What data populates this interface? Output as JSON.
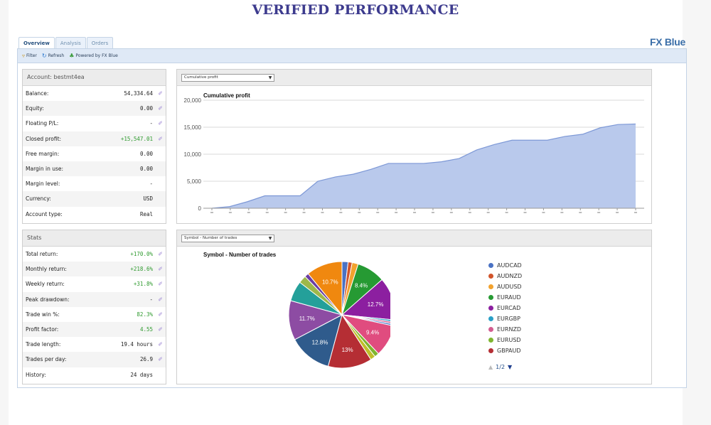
{
  "page": {
    "title": "VERIFIED PERFORMANCE"
  },
  "tabs": [
    {
      "label": "Overview",
      "active": true
    },
    {
      "label": "Analysis",
      "active": false
    },
    {
      "label": "Orders",
      "active": false
    }
  ],
  "brand": "FX Blue",
  "toolbar": {
    "filter": "Filter",
    "refresh": "Refresh",
    "powered": "Powered by FX Blue"
  },
  "icons": {
    "filter": "filter-icon",
    "refresh": "refresh-icon",
    "powered": "fxblue-logo-icon",
    "link": "external-link-icon"
  },
  "account": {
    "header": "Account: bestmt4ea",
    "rows": [
      {
        "label": "Balance:",
        "value": "54,334.64",
        "link": true
      },
      {
        "label": "Equity:",
        "value": "0.00",
        "link": true
      },
      {
        "label": "Floating P/L:",
        "value": "-",
        "link": true
      },
      {
        "label": "Closed profit:",
        "value": "+15,547.01",
        "link": true,
        "positive": true
      },
      {
        "label": "Free margin:",
        "value": "0.00",
        "link": false
      },
      {
        "label": "Margin in use:",
        "value": "0.00",
        "link": false
      },
      {
        "label": "Margin level:",
        "value": "-",
        "link": false
      },
      {
        "label": "Currency:",
        "value": "USD",
        "link": false
      },
      {
        "label": "Account type:",
        "value": "Real",
        "link": false
      }
    ]
  },
  "stats": {
    "header": "Stats",
    "rows": [
      {
        "label": "Total return:",
        "value": "+170.0%",
        "link": true,
        "positive": true
      },
      {
        "label": "Monthly return:",
        "value": "+218.6%",
        "link": true,
        "positive": true
      },
      {
        "label": "Weekly return:",
        "value": "+31.8%",
        "link": true,
        "positive": true
      },
      {
        "label": "Peak drawdown:",
        "value": "-",
        "link": true
      },
      {
        "label": "Trade win %:",
        "value": "82.3%",
        "link": true,
        "positive": true
      },
      {
        "label": "Profit factor:",
        "value": "4.55",
        "link": true,
        "positive": true
      },
      {
        "label": "Trade length:",
        "value": "19.4 hours",
        "link": true
      },
      {
        "label": "Trades per day:",
        "value": "26.9",
        "link": true
      },
      {
        "label": "History:",
        "value": "24 days",
        "link": false
      }
    ]
  },
  "profit_chart": {
    "select_value": "Cumulative profit",
    "colors": {
      "fill": "#b9c9ec",
      "line": "#7d98d6"
    }
  },
  "pie_chart": {
    "select_value": "Symbol - Number of trades",
    "pager": "1/2"
  },
  "chart_data": [
    {
      "type": "area",
      "title": "Cumulative profit",
      "ylim": [
        0,
        20000
      ],
      "yticks": [
        "0",
        "5,000",
        "10,000",
        "15,000",
        "20,000"
      ],
      "xtick_count": 24,
      "values": [
        0,
        300,
        1200,
        2300,
        2300,
        2300,
        5000,
        5800,
        6300,
        7200,
        8300,
        8300,
        8300,
        8600,
        9200,
        10800,
        11800,
        12600,
        12600,
        12600,
        13300,
        13700,
        14900,
        15500,
        15600
      ],
      "grid": true
    },
    {
      "type": "pie",
      "title": "Symbol - Number of trades",
      "legend": "right",
      "slices": [
        {
          "name": "AUDCAD",
          "value": 1.8,
          "color": "#4a72c4"
        },
        {
          "name": "AUDNZD",
          "value": 1.2,
          "color": "#d1542b"
        },
        {
          "name": "AUDUSD",
          "value": 1.8,
          "color": "#f2a22e"
        },
        {
          "name": "EURAUD",
          "value": 8.4,
          "color": "#269a33",
          "label": "8.4%"
        },
        {
          "name": "EURCAD",
          "value": 12.7,
          "color": "#8c1fa0",
          "label": "12.7%"
        },
        {
          "name": "EURGBP",
          "value": 0.6,
          "color": "#2a9fc6"
        },
        {
          "name": "EURNZD",
          "value": 0.6,
          "color": "#d35d90"
        },
        {
          "name": "",
          "value": 0.6,
          "color": "#4f7acb"
        },
        {
          "name": "",
          "value": 9.4,
          "color": "#e04c7f",
          "label": "9.4%"
        },
        {
          "name": "EURUSD",
          "value": 1.3,
          "color": "#7fb530"
        },
        {
          "name": "",
          "value": 1.5,
          "color": "#bfbf2a"
        },
        {
          "name": "GBPAUD",
          "value": 13.0,
          "color": "#b52e34",
          "label": "13%"
        },
        {
          "name": "",
          "value": 12.8,
          "color": "#2f5b8c",
          "label": "12.8%"
        },
        {
          "name": "",
          "value": 11.7,
          "color": "#8d4ca3",
          "label": "11.7%"
        },
        {
          "name": "",
          "value": 6.0,
          "color": "#24a09a"
        },
        {
          "name": "",
          "value": 2.3,
          "color": "#9db84a"
        },
        {
          "name": "",
          "value": 1.2,
          "color": "#6a3da3"
        },
        {
          "name": "",
          "value": 10.7,
          "color": "#f0880f",
          "label": "10.7%"
        }
      ]
    }
  ]
}
